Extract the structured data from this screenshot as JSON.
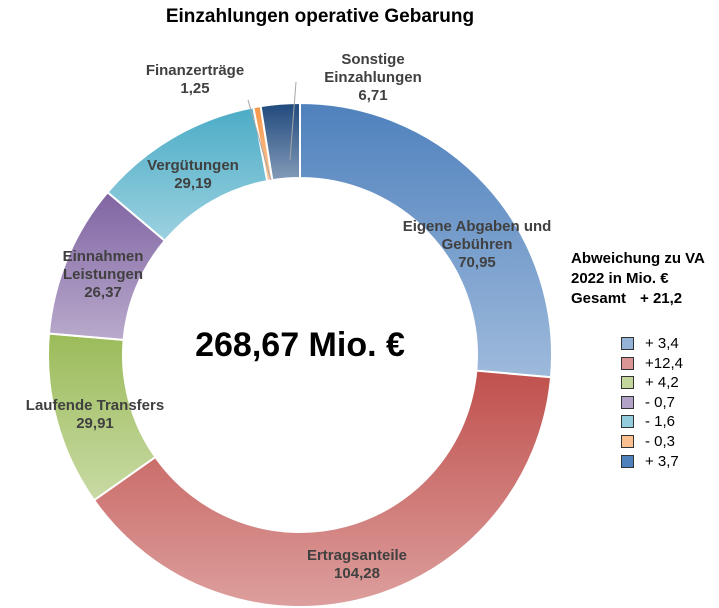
{
  "chart_data": {
    "type": "donut",
    "title": "Einzahlungen operative Gebarung",
    "center_label": "268,67 Mio. €",
    "categories": [
      "Eigene Abgaben und Gebühren",
      "Ertragsanteile",
      "Laufende Transfers",
      "Einnahmen Leistungen",
      "Vergütungen",
      "Finanzerträge",
      "Sonstige Einzahlungen"
    ],
    "values": [
      70.95,
      104.28,
      29.91,
      26.37,
      29.19,
      1.25,
      6.71
    ],
    "value_labels": [
      "70,95",
      "104,28",
      "29,91",
      "26,37",
      "29,19",
      "1,25",
      "6,71"
    ],
    "colors": [
      "#4f81bd",
      "#c0504d",
      "#9bbb59",
      "#8064a2",
      "#4bacc6",
      "#f79646",
      "#1f497d"
    ],
    "deviation_legend": {
      "title": "Abweichung zu VA 2022 in Mio. €",
      "total_label": "Gesamt",
      "total": "+ 21,2",
      "items": [
        {
          "label": "+ 3,4",
          "color": "#95b3d7"
        },
        {
          "label": "+12,4",
          "color": "#d99694"
        },
        {
          "label": "+ 4,2",
          "color": "#c3d69b"
        },
        {
          "label": "- 0,7",
          "color": "#b3a2c7"
        },
        {
          "label": "- 1,6",
          "color": "#93cddd"
        },
        {
          "label": "- 0,3",
          "color": "#fac090"
        },
        {
          "label": "+ 3,7",
          "color": "#4f81bd"
        }
      ]
    }
  }
}
